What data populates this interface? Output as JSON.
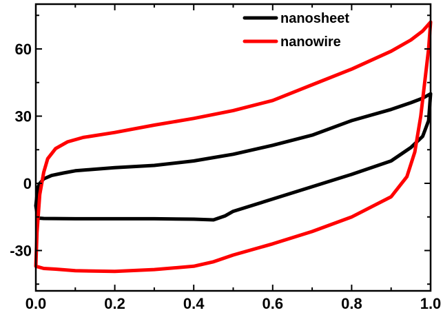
{
  "chart_data": {
    "type": "line",
    "title": "",
    "xlabel": "",
    "ylabel": "",
    "xlim": [
      0.0,
      1.0
    ],
    "ylim": [
      -48,
      80
    ],
    "x_ticks": [
      "0.0",
      "0.2",
      "0.4",
      "0.6",
      "0.8",
      "1.0"
    ],
    "y_ticks": [
      "-30",
      "0",
      "30",
      "60"
    ],
    "x_tick_values": [
      0.0,
      0.2,
      0.4,
      0.6,
      0.8,
      1.0
    ],
    "y_tick_values": [
      -30,
      0,
      30,
      60
    ],
    "grid": false,
    "legend_placement": "top-right",
    "series": [
      {
        "name": "nanosheet",
        "color": "#000000",
        "points": [
          [
            0.0,
            -10
          ],
          [
            0.005,
            -2
          ],
          [
            0.01,
            0
          ],
          [
            0.02,
            2
          ],
          [
            0.04,
            3.5
          ],
          [
            0.07,
            4.6
          ],
          [
            0.1,
            5.6
          ],
          [
            0.15,
            6.3
          ],
          [
            0.2,
            7
          ],
          [
            0.3,
            8
          ],
          [
            0.4,
            10
          ],
          [
            0.45,
            11.5
          ],
          [
            0.5,
            13
          ],
          [
            0.6,
            17
          ],
          [
            0.7,
            21.5
          ],
          [
            0.8,
            28
          ],
          [
            0.9,
            33
          ],
          [
            0.95,
            36
          ],
          [
            0.98,
            38
          ],
          [
            1.0,
            40
          ],
          [
            0.995,
            28
          ],
          [
            0.98,
            21
          ],
          [
            0.95,
            16
          ],
          [
            0.9,
            10
          ],
          [
            0.8,
            4
          ],
          [
            0.7,
            -1.5
          ],
          [
            0.6,
            -7
          ],
          [
            0.5,
            -12.5
          ],
          [
            0.48,
            -14.5
          ],
          [
            0.45,
            -16.3
          ],
          [
            0.4,
            -16
          ],
          [
            0.3,
            -15.8
          ],
          [
            0.2,
            -15.8
          ],
          [
            0.1,
            -15.8
          ],
          [
            0.02,
            -15.7
          ],
          [
            0.005,
            -15.5
          ],
          [
            0.0,
            -10
          ]
        ]
      },
      {
        "name": "nanowire",
        "color": "#ff0000",
        "points": [
          [
            0.0,
            -37
          ],
          [
            0.003,
            -22
          ],
          [
            0.01,
            -5
          ],
          [
            0.02,
            5
          ],
          [
            0.03,
            11
          ],
          [
            0.05,
            15.5
          ],
          [
            0.08,
            18.5
          ],
          [
            0.12,
            20.5
          ],
          [
            0.2,
            22.7
          ],
          [
            0.3,
            26
          ],
          [
            0.4,
            29
          ],
          [
            0.5,
            32.5
          ],
          [
            0.6,
            37
          ],
          [
            0.7,
            44
          ],
          [
            0.8,
            51
          ],
          [
            0.9,
            59
          ],
          [
            0.95,
            64
          ],
          [
            0.98,
            68
          ],
          [
            1.0,
            72
          ],
          [
            0.995,
            60
          ],
          [
            0.985,
            45
          ],
          [
            0.975,
            30
          ],
          [
            0.96,
            14
          ],
          [
            0.94,
            3
          ],
          [
            0.9,
            -6
          ],
          [
            0.8,
            -15
          ],
          [
            0.7,
            -21.5
          ],
          [
            0.6,
            -27
          ],
          [
            0.5,
            -32
          ],
          [
            0.45,
            -35
          ],
          [
            0.4,
            -37
          ],
          [
            0.3,
            -38.5
          ],
          [
            0.2,
            -39.3
          ],
          [
            0.1,
            -39
          ],
          [
            0.05,
            -38.3
          ],
          [
            0.02,
            -38
          ],
          [
            0.0,
            -37
          ]
        ]
      }
    ]
  }
}
